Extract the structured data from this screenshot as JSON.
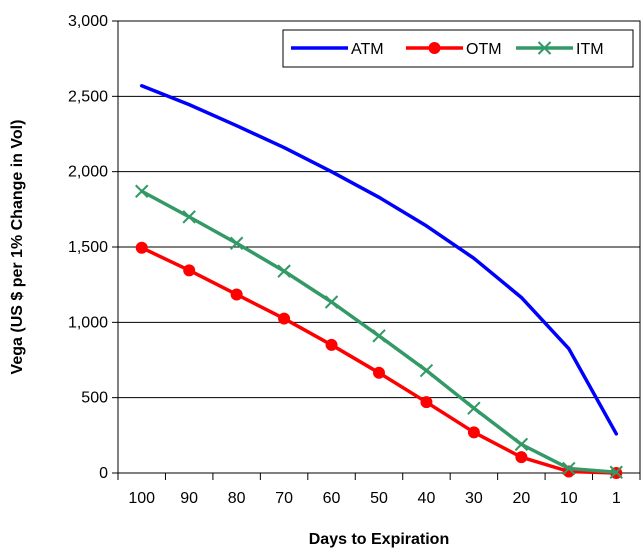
{
  "chart_data": {
    "type": "line",
    "title": "",
    "xlabel": "Days to Expiration",
    "ylabel": "Vega (US $ per 1% Change in Vol)",
    "categories": [
      "100",
      "90",
      "80",
      "70",
      "60",
      "50",
      "40",
      "30",
      "20",
      "10",
      "1"
    ],
    "ylim": [
      0,
      3000
    ],
    "yticks": [
      0,
      500,
      1000,
      1500,
      2000,
      2500,
      3000
    ],
    "ytick_labels": [
      "0",
      "500",
      "1,000",
      "1,500",
      "2,000",
      "2,500",
      "3,000"
    ],
    "grid": "horizontal",
    "legend_position": "top-right",
    "series": [
      {
        "name": "ATM",
        "color": "#0000ff",
        "marker": "none",
        "values": [
          2570,
          2445,
          2305,
          2160,
          2000,
          1830,
          1640,
          1425,
          1165,
          825,
          260
        ]
      },
      {
        "name": "OTM",
        "color": "#ff0000",
        "marker": "circle",
        "values": [
          1495,
          1345,
          1185,
          1025,
          850,
          665,
          470,
          270,
          105,
          10,
          0
        ]
      },
      {
        "name": "ITM",
        "color": "#339966",
        "marker": "x",
        "values": [
          1870,
          1700,
          1525,
          1340,
          1135,
          910,
          680,
          430,
          190,
          30,
          5
        ]
      }
    ]
  }
}
